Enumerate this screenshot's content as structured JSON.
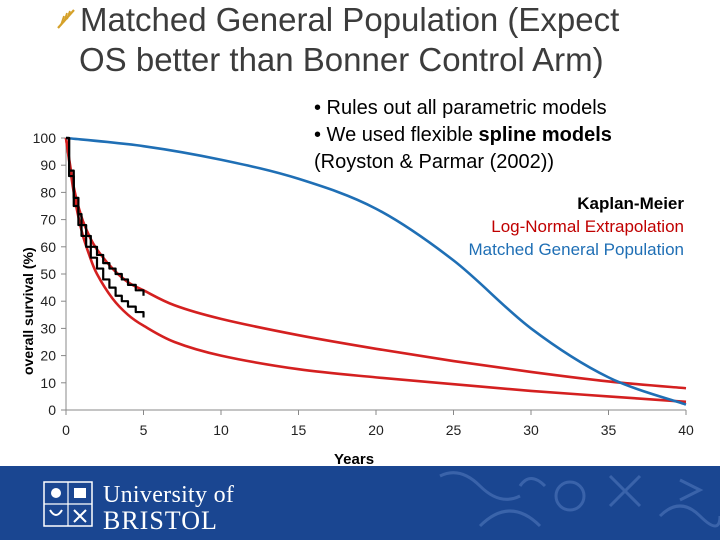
{
  "slide": {
    "title_line1": "Matched General Population (Expect",
    "title_line2": "OS better than Bonner Control Arm)",
    "bullet1": "• Rules out all parametric models",
    "bullet2_prefix": "• We used flexible ",
    "bullet2_bold": "spline models",
    "bullet3": "(Royston & Parmar (2002))"
  },
  "chart_data": {
    "type": "line",
    "xlabel": "Years",
    "ylabel": "overall survival (%)",
    "xlim": [
      0,
      40
    ],
    "ylim": [
      0,
      100
    ],
    "x_ticks": [
      0,
      5,
      10,
      15,
      20,
      25,
      30,
      35,
      40
    ],
    "y_ticks": [
      0,
      10,
      20,
      30,
      40,
      50,
      60,
      70,
      80,
      90,
      100
    ],
    "grid": false,
    "legend_position": "right",
    "series": [
      {
        "name": "Kaplan-Meier",
        "color": "#000000",
        "style": "step",
        "x": [
          0,
          0.2,
          0.5,
          0.8,
          1.0,
          1.3,
          1.6,
          2.0,
          2.4,
          2.8,
          3.2,
          3.6,
          4.0,
          4.5,
          5.0
        ],
        "y": [
          100,
          88,
          78,
          72,
          68,
          64,
          60,
          57,
          54,
          52,
          50,
          48,
          46,
          44,
          42
        ]
      },
      {
        "name": "Kaplan-Meier",
        "color": "#000000",
        "style": "step",
        "x": [
          0,
          0.2,
          0.5,
          0.8,
          1.0,
          1.3,
          1.6,
          2.0,
          2.4,
          2.8,
          3.2,
          3.6,
          4.0,
          4.5,
          5.0
        ],
        "y": [
          100,
          86,
          75,
          68,
          64,
          60,
          56,
          52,
          48,
          45,
          42,
          40,
          38,
          36,
          34
        ]
      },
      {
        "name": "Log-Normal Extrapolation",
        "color": "#d42020",
        "x": [
          0,
          0.5,
          1,
          1.5,
          2,
          3,
          4,
          5,
          7,
          10,
          15,
          20,
          25,
          30,
          35,
          40
        ],
        "y": [
          100,
          82,
          71,
          64,
          59,
          52,
          47,
          44,
          38.5,
          33.5,
          27.5,
          22.5,
          18,
          14,
          10.5,
          8
        ]
      },
      {
        "name": "Log-Normal Extrapolation",
        "color": "#d42020",
        "x": [
          0,
          0.5,
          1,
          1.5,
          2,
          3,
          4,
          5,
          7,
          10,
          15,
          20,
          25,
          30,
          35,
          40
        ],
        "y": [
          100,
          80,
          66,
          57,
          50,
          41,
          35,
          31,
          25,
          20,
          15,
          12,
          9.5,
          7,
          5,
          3
        ]
      },
      {
        "name": "Matched General Population",
        "color": "#1f6fb5",
        "x": [
          0,
          5,
          10,
          15,
          20,
          25,
          30,
          35,
          40
        ],
        "y": [
          100,
          97,
          92,
          85,
          74,
          55,
          30,
          12,
          2
        ]
      }
    ]
  },
  "legend": {
    "km": "Kaplan-Meier",
    "lognormal": "Log-Normal Extrapolation",
    "genpop": "Matched General Population"
  },
  "footer": {
    "line1": "University of",
    "line2": "BRISTOL"
  }
}
